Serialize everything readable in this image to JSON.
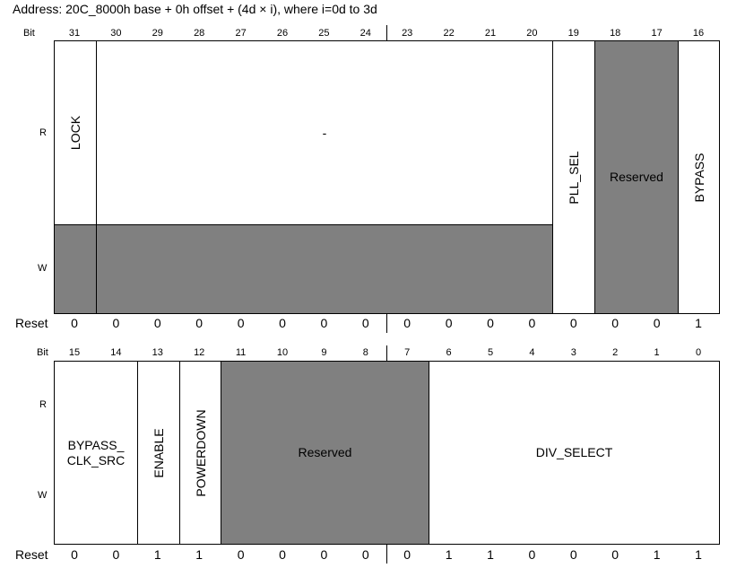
{
  "address": "Address: 20C_8000h base + 0h offset + (4d × i), where i=0d to 3d",
  "labels": {
    "bit": "Bit",
    "read": "R",
    "write": "W",
    "reset": "Reset"
  },
  "upper": {
    "bits": [
      "31",
      "30",
      "29",
      "28",
      "27",
      "26",
      "25",
      "24",
      "23",
      "22",
      "21",
      "20",
      "19",
      "18",
      "17",
      "16"
    ],
    "reset": [
      "0",
      "0",
      "0",
      "0",
      "0",
      "0",
      "0",
      "0",
      "0",
      "0",
      "0",
      "0",
      "0",
      "0",
      "0",
      "1"
    ],
    "fields": {
      "lock": "LOCK",
      "dash": "-",
      "pll_sel": "PLL_SEL",
      "reserved": "Reserved",
      "bypass": "BYPASS"
    }
  },
  "lower": {
    "bits": [
      "15",
      "14",
      "13",
      "12",
      "11",
      "10",
      "9",
      "8",
      "7",
      "6",
      "5",
      "4",
      "3",
      "2",
      "1",
      "0"
    ],
    "reset": [
      "0",
      "0",
      "1",
      "1",
      "0",
      "0",
      "0",
      "0",
      "0",
      "1",
      "1",
      "0",
      "0",
      "0",
      "1",
      "1"
    ],
    "fields": {
      "bypass_clk_src_1": "BYPASS_",
      "bypass_clk_src_2": "CLK_SRC",
      "enable": "ENABLE",
      "powerdown": "POWERDOWN",
      "reserved": "Reserved",
      "div_select": "DIV_SELECT"
    }
  },
  "colors": {
    "reserved_fill": "#808080",
    "border": "#000000",
    "background": "#ffffff"
  }
}
